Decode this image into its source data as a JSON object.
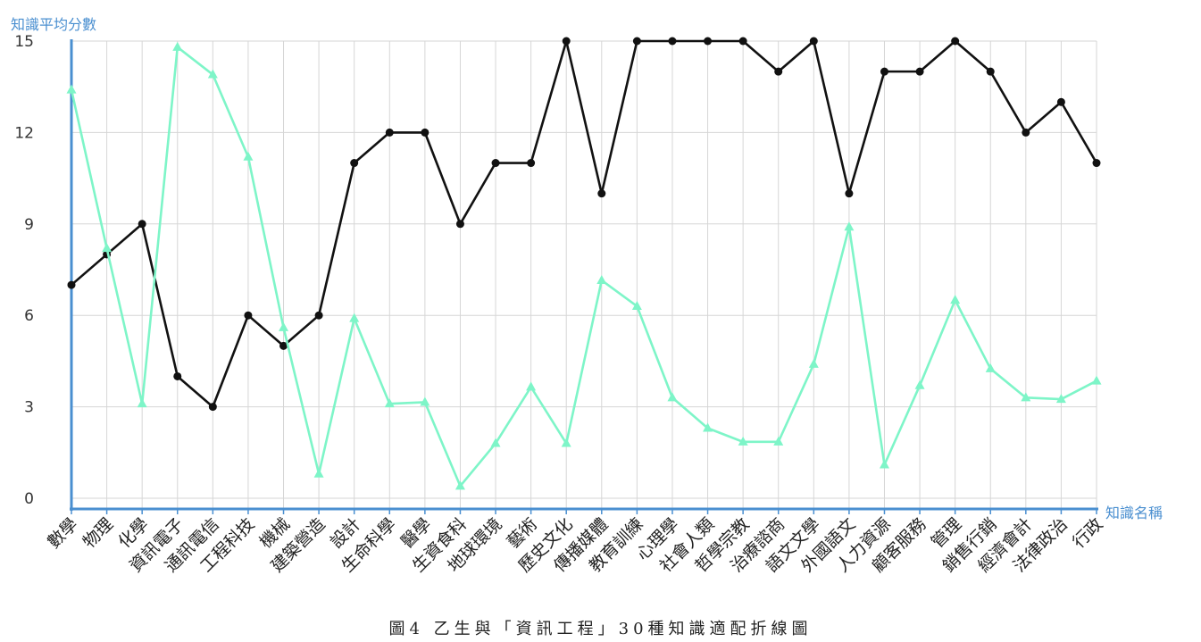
{
  "chart_data": {
    "type": "line",
    "ylabel": "知識平均分數",
    "xlabel": "知識名稱",
    "ylim": [
      0,
      15
    ],
    "yticks": [
      0,
      3,
      6,
      9,
      12,
      15
    ],
    "grid": true,
    "categories": [
      "數學",
      "物理",
      "化學",
      "資訊電子",
      "通訊電信",
      "工程科技",
      "機械",
      "建築營造",
      "設計",
      "生命科學",
      "醫學",
      "生資食科",
      "地球環境",
      "藝術",
      "歷史文化",
      "傳播媒體",
      "教育訓練",
      "心理學",
      "社會人類",
      "哲學宗教",
      "治療諮商",
      "語文文學",
      "外國語文",
      "人力資源",
      "顧客服務",
      "管理",
      "銷售行銷",
      "經濟會計",
      "法律政治",
      "行政"
    ],
    "series": [
      {
        "color": "#111111",
        "marker": "circle",
        "values": [
          7,
          8,
          9,
          4,
          3,
          6,
          5,
          6,
          11,
          12,
          12,
          9,
          11,
          11,
          15,
          10,
          15,
          15,
          15,
          15,
          14,
          15,
          10,
          14,
          14,
          15,
          14,
          12,
          13,
          11
        ]
      },
      {
        "color": "#7ef5c8",
        "marker": "triangle",
        "values": [
          13.4,
          8.2,
          3.1,
          14.8,
          13.9,
          11.2,
          5.6,
          0.8,
          5.9,
          3.1,
          3.15,
          0.4,
          1.8,
          3.65,
          1.8,
          7.15,
          6.3,
          3.3,
          2.3,
          1.85,
          1.85,
          4.4,
          8.9,
          1.1,
          3.7,
          6.5,
          4.25,
          3.3,
          3.25,
          3.85
        ]
      }
    ]
  },
  "caption": "圖4 乙生與「資訊工程」30種知識適配折線圖"
}
